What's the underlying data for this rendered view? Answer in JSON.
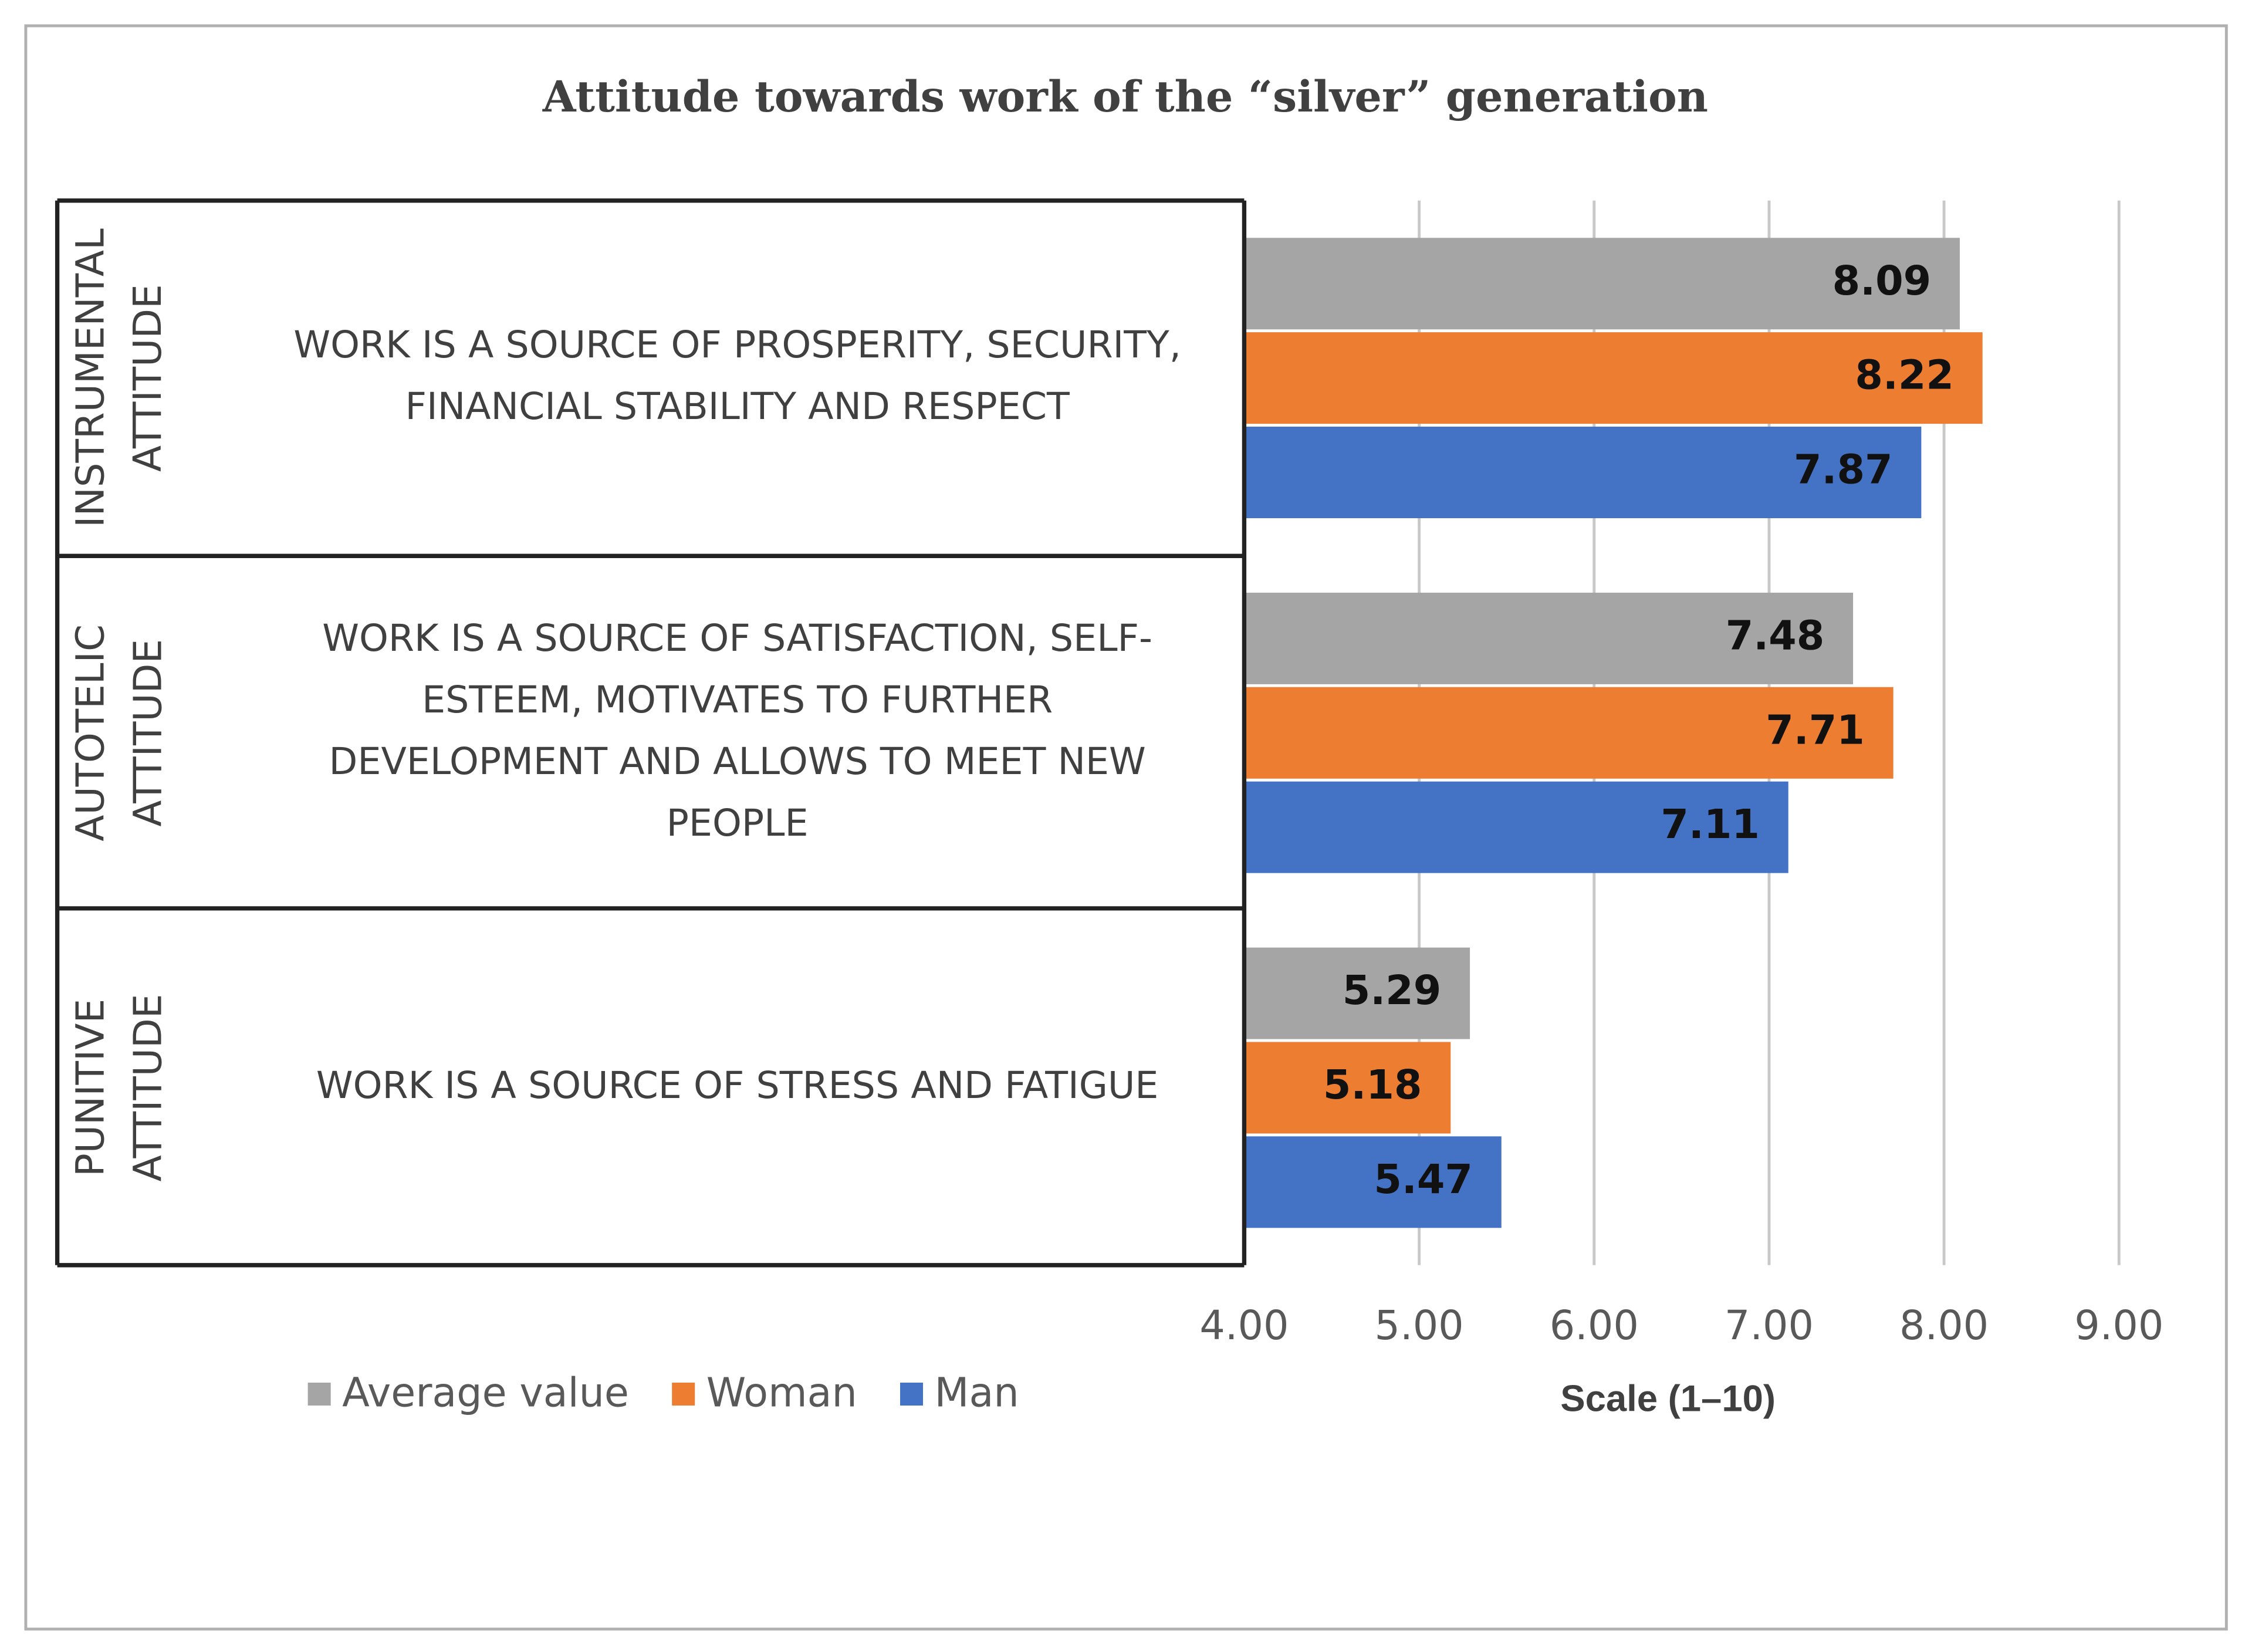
{
  "chart_data": {
    "type": "bar",
    "orientation": "horizontal",
    "title": "Attitude towards work of the “silver” generation",
    "groups": [
      [
        "INSTRUMENTAL",
        "ATTITUDE"
      ],
      [
        "AUTOTELIC",
        "ATTITUDE"
      ],
      [
        "PUNITIVE",
        "ATTITUDE"
      ]
    ],
    "categories": [
      [
        "WORK IS A SOURCE OF PROSPERITY, SECURITY,",
        "FINANCIAL STABILITY AND RESPECT"
      ],
      [
        "WORK IS A SOURCE OF SATISFACTION, SELF-",
        "ESTEEM, MOTIVATES TO FURTHER",
        "DEVELOPMENT AND ALLOWS TO MEET NEW",
        "PEOPLE"
      ],
      [
        "WORK IS A SOURCE OF STRESS AND FATIGUE"
      ]
    ],
    "series": [
      {
        "name": "Average value",
        "color": "#a5a5a5",
        "values": [
          8.09,
          7.48,
          5.29
        ]
      },
      {
        "name": "Woman",
        "color": "#ed7d31",
        "values": [
          8.22,
          7.71,
          5.18
        ]
      },
      {
        "name": "Man",
        "color": "#4472c4",
        "values": [
          7.87,
          7.11,
          5.47
        ]
      }
    ],
    "x_label": "Scale (1–10)",
    "xlim": [
      4,
      9
    ],
    "xticks": [
      {
        "value": 4,
        "label": "4.00"
      },
      {
        "value": 5,
        "label": "5.00"
      },
      {
        "value": 6,
        "label": "6.00"
      },
      {
        "value": 7,
        "label": "7.00"
      },
      {
        "value": 8,
        "label": "8.00"
      },
      {
        "value": 9,
        "label": "9.00"
      }
    ],
    "grid": true,
    "legend": "bottom-left"
  }
}
